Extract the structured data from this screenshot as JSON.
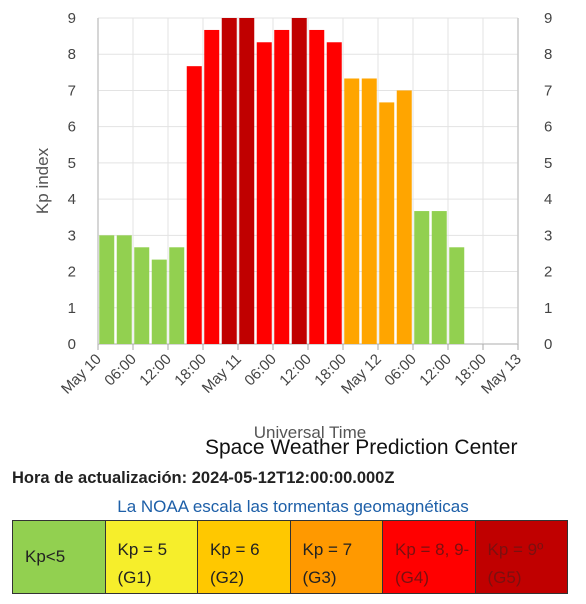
{
  "chart_data": {
    "type": "bar",
    "ylabel": "Kp index",
    "xlabel": "Universal Time",
    "ylim": [
      0,
      9
    ],
    "yticks": [
      0,
      1,
      2,
      3,
      4,
      5,
      6,
      7,
      8,
      9
    ],
    "xticks": [
      "May 10",
      "06:00",
      "12:00",
      "18:00",
      "May 11",
      "06:00",
      "12:00",
      "18:00",
      "May 12",
      "06:00",
      "12:00",
      "18:00",
      "May 13"
    ],
    "bar_interval": "3 hours",
    "values": [
      3.0,
      3.0,
      2.67,
      2.33,
      2.67,
      7.67,
      8.67,
      9.0,
      9.0,
      8.33,
      8.67,
      9.0,
      8.67,
      8.33,
      7.33,
      7.33,
      6.67,
      7.0,
      3.67,
      3.67,
      2.67
    ],
    "colors": [
      "#92d050",
      "#92d050",
      "#92d050",
      "#92d050",
      "#92d050",
      "#ff0000",
      "#ff0000",
      "#c00000",
      "#c00000",
      "#ff0000",
      "#ff0000",
      "#c00000",
      "#ff0000",
      "#ff0000",
      "#ffa500",
      "#ffa500",
      "#ffa500",
      "#ffa500",
      "#92d050",
      "#92d050",
      "#92d050"
    ],
    "grid": true
  },
  "credit": "Space Weather Prediction Center",
  "updated": "Hora de actualización: 2024-05-12T12:00:00.000Z",
  "scale": {
    "title": "La NOAA escala las tormentas geomagnéticas",
    "levels": [
      {
        "line1": "Kp<5",
        "line2": "",
        "color": "#92d050",
        "text_color": "#222222"
      },
      {
        "line1": "Kp = 5",
        "line2": "(G1)",
        "color": "#f6ee2b",
        "text_color": "#222222"
      },
      {
        "line1": "Kp = 6",
        "line2": "(G2)",
        "color": "#ffc800",
        "text_color": "#222222"
      },
      {
        "line1": "Kp = 7",
        "line2": "(G3)",
        "color": "#ff9900",
        "text_color": "#222222"
      },
      {
        "line1": "Kp = 8, 9-",
        "line2": "(G4)",
        "color": "#ff0000",
        "text_color": "#7a1010"
      },
      {
        "line1": "Kp = 9º",
        "line2": "(G5)",
        "color": "#c00000",
        "text_color": "#7a1010"
      }
    ]
  }
}
